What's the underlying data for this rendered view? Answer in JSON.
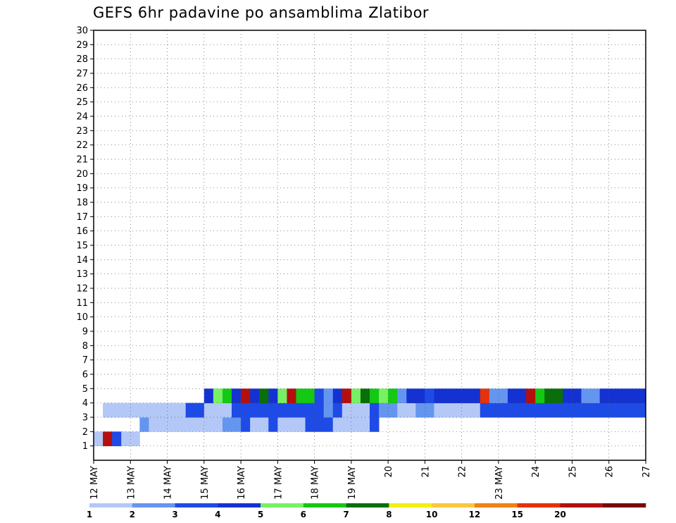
{
  "chart_data": {
    "type": "heatmap",
    "title": "GEFS 6hr padavine po ansamblima Zlatibor",
    "x_ticks": [
      "12 MAY",
      "13 MAY",
      "14 MAY",
      "15 MAY",
      "16 MAY",
      "17 MAY",
      "18 MAY",
      "19 MAY",
      "20",
      "21",
      "22",
      "23 MAY",
      "24",
      "25",
      "26",
      "27"
    ],
    "y_ticks": [
      1,
      2,
      3,
      4,
      5,
      6,
      7,
      8,
      9,
      10,
      11,
      12,
      13,
      14,
      15,
      16,
      17,
      18,
      19,
      20,
      21,
      22,
      23,
      24,
      25,
      26,
      27,
      28,
      29,
      30
    ],
    "x_range": [
      "12 MAY",
      "27 MAY"
    ],
    "y_range": [
      0,
      30
    ],
    "grid": true,
    "time_step_hours": 6,
    "colorbar": {
      "boundaries": [
        "1",
        "2",
        "3",
        "4",
        "5",
        "6",
        "7",
        "8",
        "10",
        "12",
        "15",
        "20"
      ],
      "colors": [
        "#b4c8f8",
        "#6496f0",
        "#1e4be6",
        "#1432d2",
        "#78f064",
        "#14c814",
        "#0a6e0a",
        "#f0f014",
        "#fac83c",
        "#f08214",
        "#e6320a",
        "#b40f0f",
        "#780a0a"
      ]
    },
    "cells": [
      [
        23,
        1,
        2
      ],
      [
        12,
        2,
        2
      ],
      [
        3,
        3,
        2
      ],
      [
        1,
        4,
        2
      ],
      [
        1,
        5,
        2
      ],
      [
        2,
        6,
        3
      ],
      [
        1,
        7,
        3
      ],
      [
        1,
        8,
        3
      ],
      [
        1,
        9,
        3
      ],
      [
        1,
        10,
        3
      ],
      [
        1,
        11,
        3
      ],
      [
        1,
        12,
        3
      ],
      [
        1,
        13,
        3
      ],
      [
        1,
        14,
        3
      ],
      [
        2,
        15,
        3
      ],
      [
        2,
        16,
        3
      ],
      [
        3,
        17,
        3
      ],
      [
        1,
        18,
        3
      ],
      [
        1,
        19,
        3
      ],
      [
        3,
        20,
        3
      ],
      [
        1,
        21,
        3
      ],
      [
        1,
        22,
        3
      ],
      [
        1,
        23,
        3
      ],
      [
        3,
        24,
        3
      ],
      [
        3,
        25,
        3
      ],
      [
        3,
        26,
        3
      ],
      [
        1,
        27,
        3
      ],
      [
        1,
        28,
        3
      ],
      [
        1,
        29,
        3
      ],
      [
        1,
        30,
        3
      ],
      [
        3,
        31,
        3
      ],
      [
        1,
        2,
        4
      ],
      [
        1,
        3,
        4
      ],
      [
        1,
        4,
        4
      ],
      [
        1,
        5,
        4
      ],
      [
        1,
        6,
        4
      ],
      [
        1,
        7,
        4
      ],
      [
        1,
        8,
        4
      ],
      [
        1,
        9,
        4
      ],
      [
        1,
        10,
        4
      ],
      [
        3,
        11,
        4
      ],
      [
        3,
        12,
        4
      ],
      [
        1,
        13,
        4
      ],
      [
        1,
        14,
        4
      ],
      [
        1,
        15,
        4
      ],
      [
        3,
        16,
        4
      ],
      [
        3,
        17,
        4
      ],
      [
        3,
        18,
        4
      ],
      [
        3,
        19,
        4
      ],
      [
        3,
        20,
        4
      ],
      [
        3,
        21,
        4
      ],
      [
        3,
        22,
        4
      ],
      [
        3,
        23,
        4
      ],
      [
        3,
        24,
        4
      ],
      [
        3,
        25,
        4
      ],
      [
        2,
        26,
        4
      ],
      [
        3,
        27,
        4
      ],
      [
        1,
        28,
        4
      ],
      [
        1,
        29,
        4
      ],
      [
        1,
        30,
        4
      ],
      [
        3,
        31,
        4
      ],
      [
        2,
        32,
        4
      ],
      [
        2,
        33,
        4
      ],
      [
        1,
        34,
        4
      ],
      [
        1,
        35,
        4
      ],
      [
        2,
        36,
        4
      ],
      [
        2,
        37,
        4
      ],
      [
        1,
        38,
        4
      ],
      [
        1,
        39,
        4
      ],
      [
        1,
        40,
        4
      ],
      [
        1,
        41,
        4
      ],
      [
        1,
        42,
        4
      ],
      [
        3,
        43,
        4
      ],
      [
        3,
        44,
        4
      ],
      [
        3,
        45,
        4
      ],
      [
        3,
        46,
        4
      ],
      [
        3,
        47,
        4
      ],
      [
        3,
        48,
        4
      ],
      [
        3,
        49,
        4
      ],
      [
        3,
        50,
        4
      ],
      [
        3,
        51,
        4
      ],
      [
        3,
        52,
        4
      ],
      [
        3,
        53,
        4
      ],
      [
        3,
        54,
        4
      ],
      [
        3,
        55,
        4
      ],
      [
        3,
        56,
        4
      ],
      [
        3,
        57,
        4
      ],
      [
        3,
        58,
        4
      ],
      [
        3,
        59,
        4
      ],
      [
        3,
        60,
        4
      ],
      [
        4,
        13,
        5
      ],
      [
        5,
        14,
        5
      ],
      [
        6,
        15,
        5
      ],
      [
        4,
        16,
        5
      ],
      [
        12,
        17,
        5
      ],
      [
        4,
        18,
        5
      ],
      [
        7,
        19,
        5
      ],
      [
        4,
        20,
        5
      ],
      [
        5,
        21,
        5
      ],
      [
        12,
        22,
        5
      ],
      [
        6,
        23,
        5
      ],
      [
        6,
        24,
        5
      ],
      [
        3,
        25,
        5
      ],
      [
        2,
        26,
        5
      ],
      [
        4,
        27,
        5
      ],
      [
        12,
        28,
        5
      ],
      [
        5,
        29,
        5
      ],
      [
        7,
        30,
        5
      ],
      [
        6,
        31,
        5
      ],
      [
        5,
        32,
        5
      ],
      [
        6,
        33,
        5
      ],
      [
        2,
        34,
        5
      ],
      [
        4,
        35,
        5
      ],
      [
        4,
        36,
        5
      ],
      [
        3,
        37,
        5
      ],
      [
        4,
        38,
        5
      ],
      [
        4,
        39,
        5
      ],
      [
        4,
        40,
        5
      ],
      [
        4,
        41,
        5
      ],
      [
        4,
        42,
        5
      ],
      [
        11,
        43,
        5
      ],
      [
        2,
        44,
        5
      ],
      [
        2,
        45,
        5
      ],
      [
        4,
        46,
        5
      ],
      [
        4,
        47,
        5
      ],
      [
        12,
        48,
        5
      ],
      [
        6,
        49,
        5
      ],
      [
        7,
        50,
        5
      ],
      [
        7,
        51,
        5
      ],
      [
        4,
        52,
        5
      ],
      [
        4,
        53,
        5
      ],
      [
        2,
        54,
        5
      ],
      [
        2,
        55,
        5
      ],
      [
        4,
        56,
        5
      ],
      [
        4,
        57,
        5
      ],
      [
        4,
        58,
        5
      ],
      [
        4,
        59,
        5
      ],
      [
        4,
        60,
        5
      ]
    ]
  },
  "colorbar_labels": [
    "1",
    "2",
    "3",
    "4",
    "5",
    "6",
    "7",
    "8",
    "10",
    "12",
    "15",
    "20"
  ]
}
